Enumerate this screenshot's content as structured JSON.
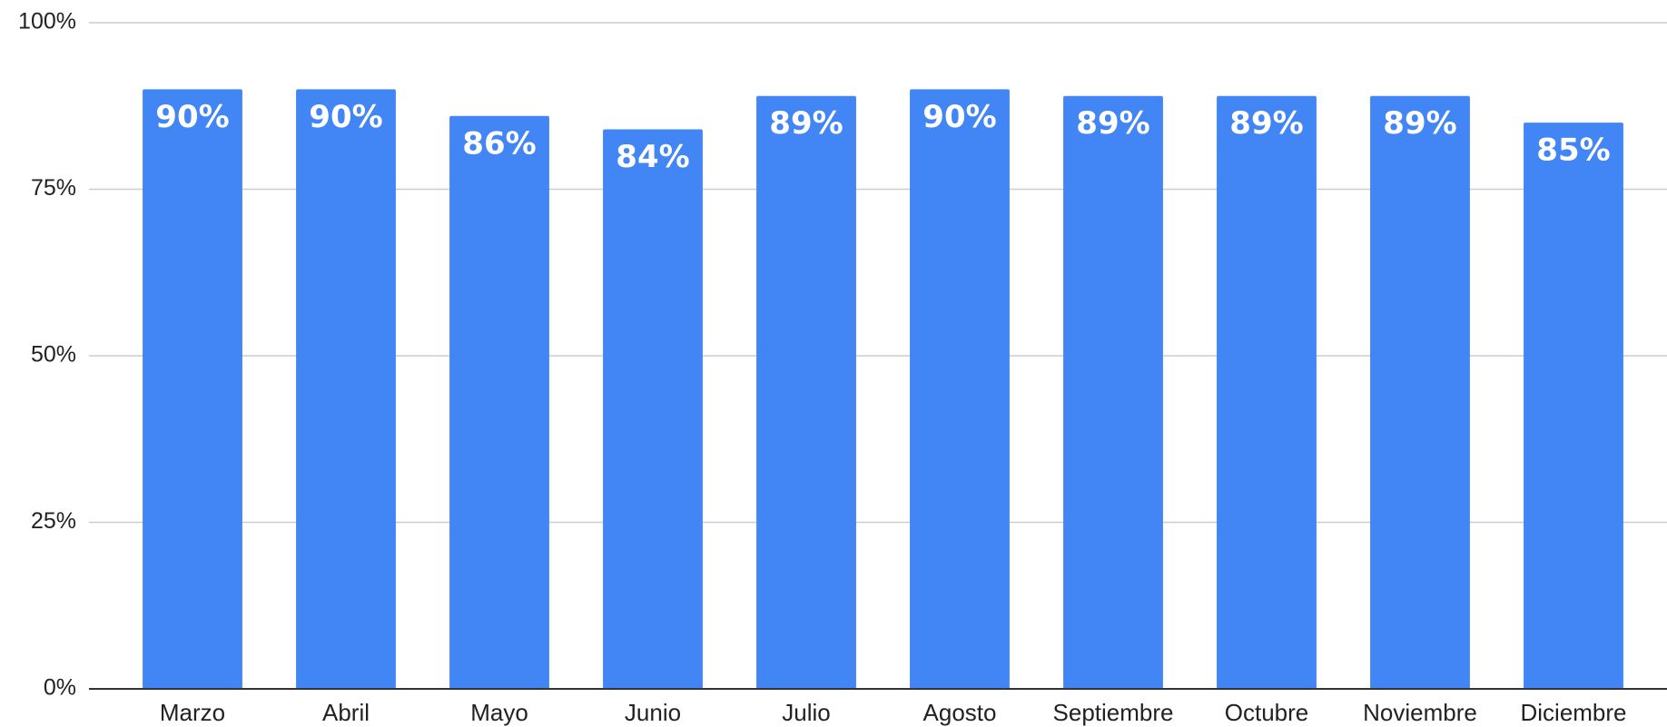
{
  "chart_data": {
    "type": "bar",
    "categories": [
      "Marzo",
      "Abril",
      "Mayo",
      "Junio",
      "Julio",
      "Agosto",
      "Septiembre",
      "Octubre",
      "Noviembre",
      "Diciembre"
    ],
    "values": [
      90,
      90,
      86,
      84,
      89,
      90,
      89,
      89,
      89,
      85
    ],
    "value_labels": [
      "90%",
      "90%",
      "86%",
      "84%",
      "89%",
      "90%",
      "89%",
      "89%",
      "89%",
      "85%"
    ],
    "color": "#4285f4",
    "ylim": [
      0,
      100
    ],
    "yticks": [
      {
        "value": 0,
        "label": "0%"
      },
      {
        "value": 25,
        "label": "25%"
      },
      {
        "value": 50,
        "label": "50%"
      },
      {
        "value": 75,
        "label": "75%"
      },
      {
        "value": 100,
        "label": "100%"
      }
    ],
    "grid": true
  }
}
